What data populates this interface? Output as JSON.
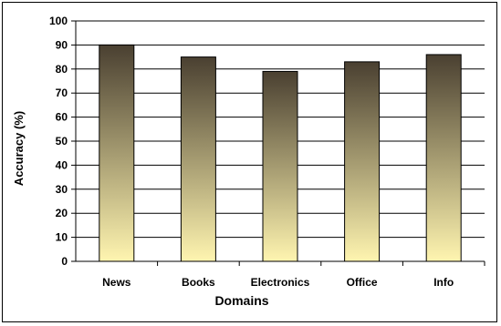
{
  "chart_data": {
    "type": "bar",
    "title": "",
    "xlabel": "Domains",
    "ylabel": "Accuracy (%)",
    "categories": [
      "News",
      "Books",
      "Electronics",
      "Office",
      "Info"
    ],
    "values": [
      90,
      85,
      79,
      83,
      86
    ],
    "ylim": [
      0,
      100
    ],
    "yticks": [
      "0",
      "10",
      "20",
      "30",
      "40",
      "50",
      "60",
      "70",
      "80",
      "90",
      "100"
    ],
    "grid": true,
    "legend": "none",
    "colors": {
      "bar_top": "#4a4031",
      "bar_bottom": "#fff5b0",
      "grid": "#000000",
      "axis": "#000000"
    }
  }
}
